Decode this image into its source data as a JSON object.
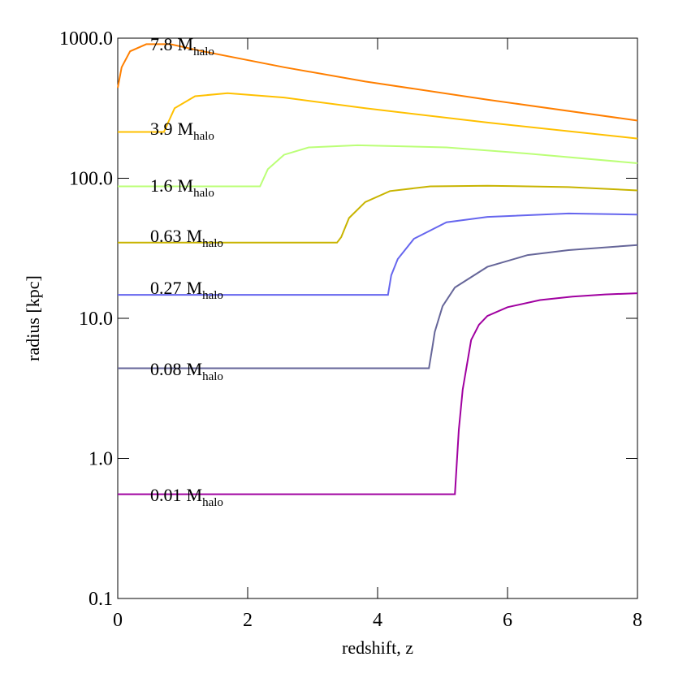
{
  "chart_data": {
    "type": "line",
    "xlabel": "redshift, z",
    "ylabel": "radius [kpc]",
    "xlim": [
      0,
      8
    ],
    "xticks": [
      0,
      2,
      4,
      6,
      8
    ],
    "ylim": [
      0.1,
      1000
    ],
    "ylog": true,
    "yticks": [
      0.1,
      {
        "value": 1,
        "label": "1.0"
      },
      {
        "value": 10,
        "label": "10.0"
      },
      {
        "value": 100,
        "label": "100.0"
      },
      {
        "value": 1000,
        "label": "1000.0"
      }
    ],
    "series_label_unit": "M",
    "series_label_subscript": "halo",
    "series": [
      {
        "name": "0.01",
        "color": "#a000a0",
        "x": [
          0,
          5.19,
          5.25,
          5.31,
          5.44,
          5.56,
          5.69,
          6.0,
          6.5,
          7.0,
          7.5,
          8
        ],
        "values": [
          0.555,
          0.555,
          1.6,
          3.1,
          7.0,
          9.0,
          10.4,
          12.0,
          13.5,
          14.3,
          14.8,
          15.1
        ]
      },
      {
        "name": "0.08",
        "color": "#666699",
        "x": [
          0,
          4.79,
          4.85,
          4.88,
          5.0,
          5.19,
          5.69,
          6.31,
          6.94,
          8
        ],
        "values": [
          4.4,
          4.4,
          6.5,
          8.0,
          12.2,
          16.6,
          23.3,
          28.3,
          30.7,
          33.4
        ]
      },
      {
        "name": "0.27",
        "color": "#6666ee",
        "x": [
          0,
          4.16,
          4.21,
          4.31,
          4.56,
          5.06,
          5.69,
          6.94,
          8
        ],
        "values": [
          14.7,
          14.7,
          20.3,
          26.5,
          37,
          48.5,
          53,
          56,
          55
        ]
      },
      {
        "name": "0.63",
        "color": "#c8b400",
        "x": [
          0,
          3.375,
          3.44,
          3.56,
          3.81,
          4.19,
          4.81,
          5.69,
          6.94,
          8
        ],
        "values": [
          34.7,
          34.7,
          38,
          52,
          67.6,
          81,
          87.5,
          88.5,
          86.5,
          81.9
        ]
      },
      {
        "name": "1.6",
        "color": "#bbff77",
        "x": [
          0,
          2.19,
          2.31,
          2.56,
          2.94,
          3.69,
          5.06,
          6.31,
          8
        ],
        "values": [
          87.5,
          87.5,
          116,
          147,
          166,
          172,
          166,
          150,
          128
        ]
      },
      {
        "name": "3.9",
        "color": "#ffc000",
        "x": [
          0,
          0.71,
          0.875,
          1.19,
          1.69,
          2.56,
          3.81,
          5.69,
          8
        ],
        "values": [
          214,
          214,
          316,
          385,
          405,
          377,
          316,
          250,
          192
        ]
      },
      {
        "name": "7.8",
        "color": "#ff7f00",
        "x": [
          0,
          0.06,
          0.19,
          0.44,
          0.81,
          1.31,
          2.56,
          3.81,
          5.69,
          8
        ],
        "values": [
          442,
          620,
          806,
          906,
          906,
          806,
          620,
          490,
          364,
          258
        ]
      }
    ]
  }
}
